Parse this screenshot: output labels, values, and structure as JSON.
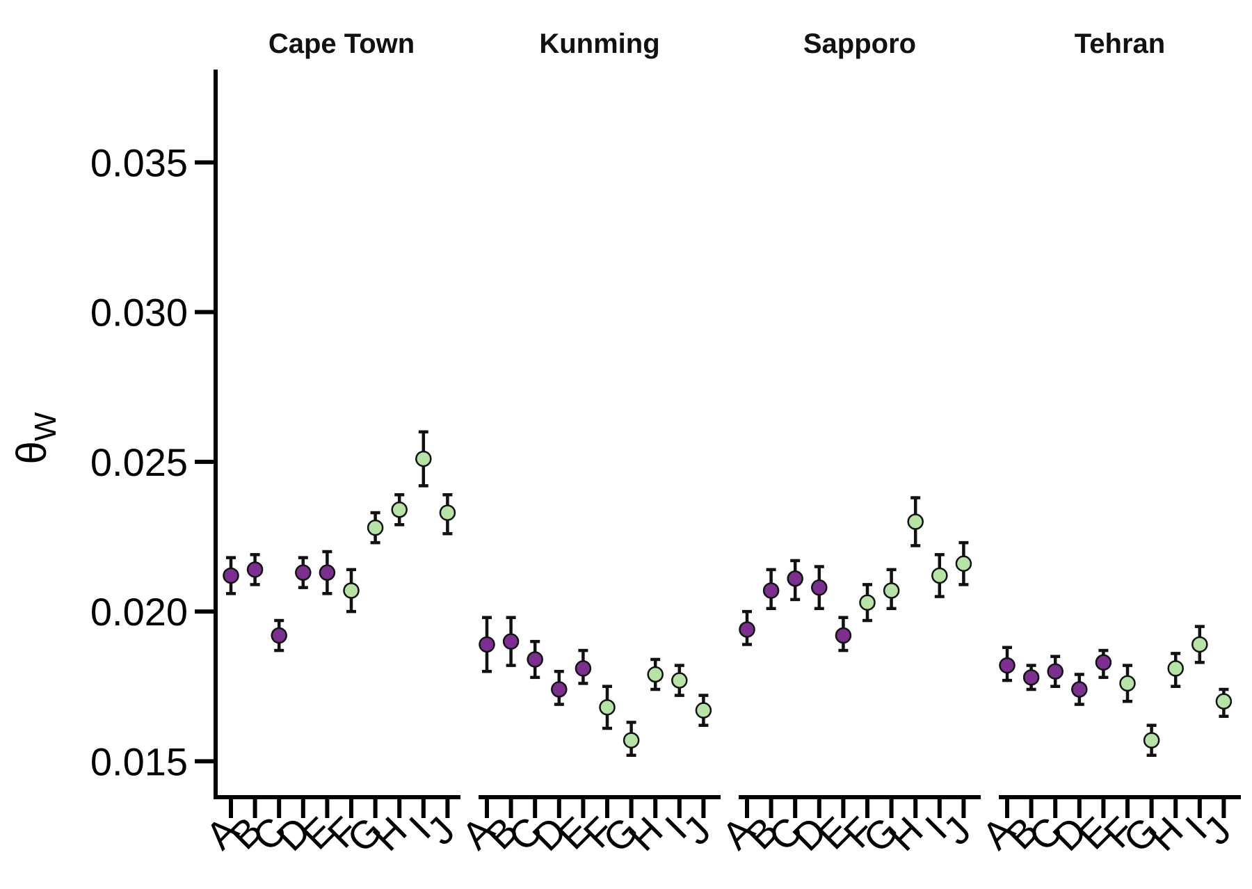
{
  "chart_data": {
    "type": "scatter",
    "ylabel": "θ",
    "ylabel_subscript": "W",
    "ylim": [
      0.0138,
      0.0381
    ],
    "yticks": [
      0.015,
      0.02,
      0.025,
      0.03,
      0.035
    ],
    "ytick_labels": [
      "0.015",
      "0.020",
      "0.025",
      "0.030",
      "0.035"
    ],
    "categories": [
      "A",
      "B",
      "C",
      "D",
      "E",
      "F",
      "G",
      "H",
      "I",
      "J"
    ],
    "colors": {
      "purple": "#7b2f8e",
      "green": "#b7e3a7"
    },
    "grid": false,
    "panels": [
      {
        "name": "Cape Town",
        "points": [
          {
            "x": "A",
            "y": 0.0212,
            "lo": 0.0206,
            "hi": 0.0218,
            "color": "purple"
          },
          {
            "x": "B",
            "y": 0.0214,
            "lo": 0.0209,
            "hi": 0.0219,
            "color": "purple"
          },
          {
            "x": "C",
            "y": 0.0192,
            "lo": 0.0187,
            "hi": 0.0197,
            "color": "purple"
          },
          {
            "x": "D",
            "y": 0.0213,
            "lo": 0.0208,
            "hi": 0.0218,
            "color": "purple"
          },
          {
            "x": "E",
            "y": 0.0213,
            "lo": 0.0206,
            "hi": 0.022,
            "color": "purple"
          },
          {
            "x": "F",
            "y": 0.0207,
            "lo": 0.02,
            "hi": 0.0214,
            "color": "green"
          },
          {
            "x": "G",
            "y": 0.0228,
            "lo": 0.0223,
            "hi": 0.0233,
            "color": "green"
          },
          {
            "x": "H",
            "y": 0.0234,
            "lo": 0.0229,
            "hi": 0.0239,
            "color": "green"
          },
          {
            "x": "I",
            "y": 0.0251,
            "lo": 0.0242,
            "hi": 0.026,
            "color": "green"
          },
          {
            "x": "J",
            "y": 0.0233,
            "lo": 0.0226,
            "hi": 0.0239,
            "color": "green"
          }
        ]
      },
      {
        "name": "Kunming",
        "points": [
          {
            "x": "A",
            "y": 0.0189,
            "lo": 0.018,
            "hi": 0.0198,
            "color": "purple"
          },
          {
            "x": "B",
            "y": 0.019,
            "lo": 0.0182,
            "hi": 0.0198,
            "color": "purple"
          },
          {
            "x": "C",
            "y": 0.0184,
            "lo": 0.0178,
            "hi": 0.019,
            "color": "purple"
          },
          {
            "x": "D",
            "y": 0.0174,
            "lo": 0.0169,
            "hi": 0.018,
            "color": "purple"
          },
          {
            "x": "E",
            "y": 0.0181,
            "lo": 0.0176,
            "hi": 0.0187,
            "color": "purple"
          },
          {
            "x": "F",
            "y": 0.0168,
            "lo": 0.0161,
            "hi": 0.0175,
            "color": "green"
          },
          {
            "x": "G",
            "y": 0.0157,
            "lo": 0.0152,
            "hi": 0.0163,
            "color": "green"
          },
          {
            "x": "H",
            "y": 0.0179,
            "lo": 0.0174,
            "hi": 0.0184,
            "color": "green"
          },
          {
            "x": "I",
            "y": 0.0177,
            "lo": 0.0172,
            "hi": 0.0182,
            "color": "green"
          },
          {
            "x": "J",
            "y": 0.0167,
            "lo": 0.0162,
            "hi": 0.0172,
            "color": "green"
          }
        ]
      },
      {
        "name": "Sapporo",
        "points": [
          {
            "x": "A",
            "y": 0.0194,
            "lo": 0.0189,
            "hi": 0.02,
            "color": "purple"
          },
          {
            "x": "B",
            "y": 0.0207,
            "lo": 0.0201,
            "hi": 0.0214,
            "color": "purple"
          },
          {
            "x": "C",
            "y": 0.0211,
            "lo": 0.0204,
            "hi": 0.0217,
            "color": "purple"
          },
          {
            "x": "D",
            "y": 0.0208,
            "lo": 0.0201,
            "hi": 0.0215,
            "color": "purple"
          },
          {
            "x": "E",
            "y": 0.0192,
            "lo": 0.0187,
            "hi": 0.0198,
            "color": "purple"
          },
          {
            "x": "F",
            "y": 0.0203,
            "lo": 0.0197,
            "hi": 0.0209,
            "color": "green"
          },
          {
            "x": "G",
            "y": 0.0207,
            "lo": 0.0201,
            "hi": 0.0214,
            "color": "green"
          },
          {
            "x": "H",
            "y": 0.023,
            "lo": 0.0222,
            "hi": 0.0238,
            "color": "green"
          },
          {
            "x": "I",
            "y": 0.0212,
            "lo": 0.0205,
            "hi": 0.0219,
            "color": "green"
          },
          {
            "x": "J",
            "y": 0.0216,
            "lo": 0.0209,
            "hi": 0.0223,
            "color": "green"
          }
        ]
      },
      {
        "name": "Tehran",
        "points": [
          {
            "x": "A",
            "y": 0.0182,
            "lo": 0.0177,
            "hi": 0.0188,
            "color": "purple"
          },
          {
            "x": "B",
            "y": 0.0178,
            "lo": 0.0174,
            "hi": 0.0182,
            "color": "purple"
          },
          {
            "x": "C",
            "y": 0.018,
            "lo": 0.0175,
            "hi": 0.0185,
            "color": "purple"
          },
          {
            "x": "D",
            "y": 0.0174,
            "lo": 0.0169,
            "hi": 0.0179,
            "color": "purple"
          },
          {
            "x": "E",
            "y": 0.0183,
            "lo": 0.0178,
            "hi": 0.0187,
            "color": "purple"
          },
          {
            "x": "F",
            "y": 0.0176,
            "lo": 0.017,
            "hi": 0.0182,
            "color": "green"
          },
          {
            "x": "G",
            "y": 0.0157,
            "lo": 0.0152,
            "hi": 0.0162,
            "color": "green"
          },
          {
            "x": "H",
            "y": 0.0181,
            "lo": 0.0175,
            "hi": 0.0186,
            "color": "green"
          },
          {
            "x": "I",
            "y": 0.0189,
            "lo": 0.0183,
            "hi": 0.0195,
            "color": "green"
          },
          {
            "x": "J",
            "y": 0.017,
            "lo": 0.0165,
            "hi": 0.0174,
            "color": "green"
          }
        ]
      }
    ]
  }
}
